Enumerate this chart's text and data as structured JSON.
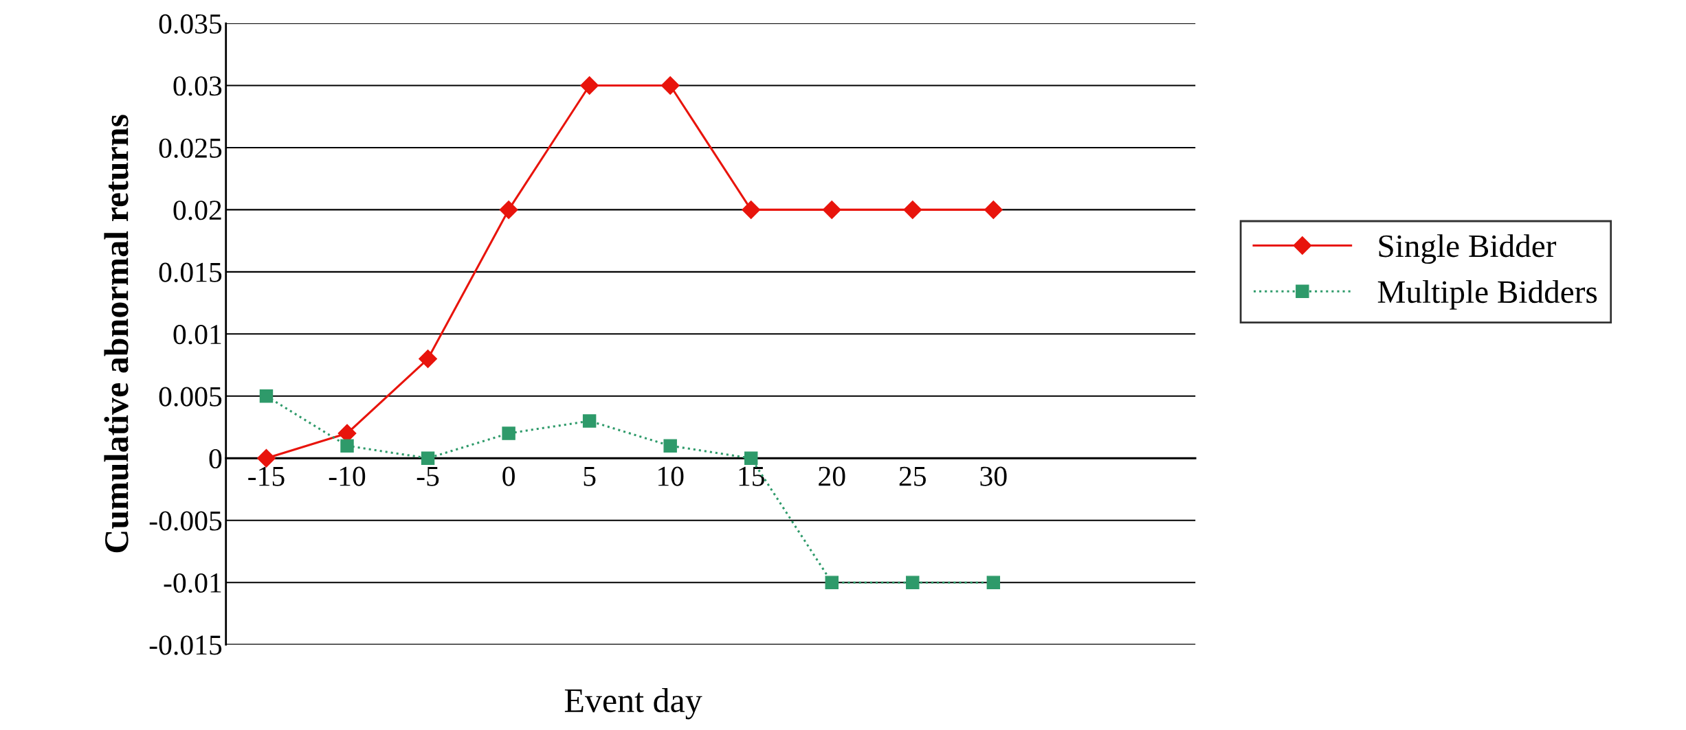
{
  "chart_data": {
    "type": "line",
    "xlabel": "Event day",
    "ylabel": "Cumulative abnormal returns",
    "categories": [
      "-15",
      "-10",
      "-5",
      "0",
      "5",
      "10",
      "15",
      "20",
      "25",
      "30",
      null,
      null
    ],
    "series": [
      {
        "name": "Single Bidder",
        "color": "#e8140c",
        "marker": "diamond",
        "line_style": "solid",
        "values": [
          0,
          0.002,
          0.008,
          0.02,
          0.03,
          0.03,
          0.02,
          0.02,
          0.02,
          0.02,
          null,
          null
        ]
      },
      {
        "name": "Multiple Bidders",
        "color": "#2e9a6a",
        "marker": "square",
        "line_style": "dotted",
        "values": [
          0.005,
          0.001,
          0,
          0.002,
          0.003,
          0.001,
          0,
          -0.01,
          -0.01,
          -0.01,
          null,
          null
        ]
      }
    ],
    "ylim": [
      -0.015,
      0.035
    ],
    "yticks": [
      -0.015,
      -0.01,
      -0.005,
      0,
      0.005,
      0.01,
      0.015,
      0.02,
      0.025,
      0.03,
      0.035
    ],
    "grid": "y",
    "legend": "right"
  }
}
